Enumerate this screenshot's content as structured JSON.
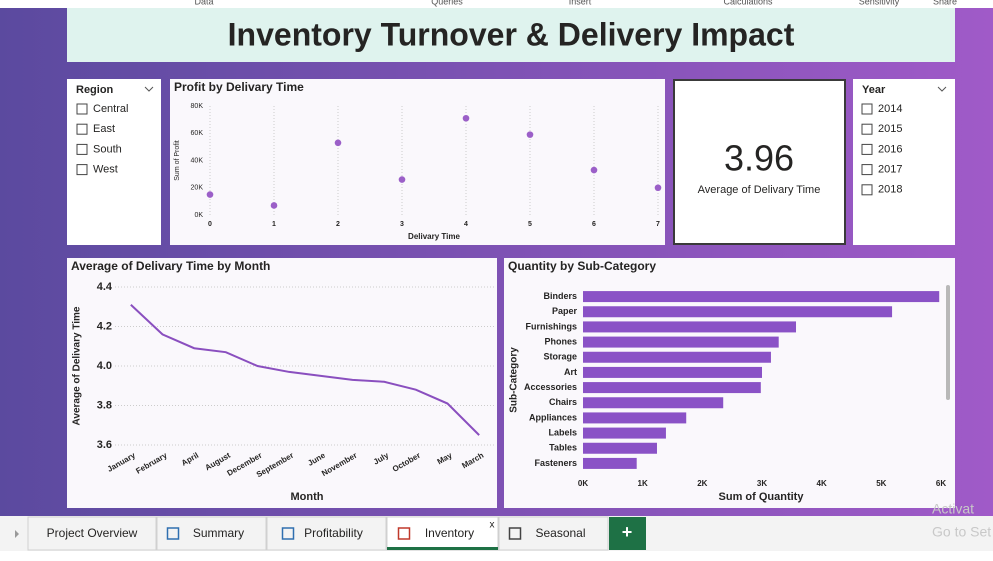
{
  "ribbon": [
    "Data",
    "Queries",
    "Insert",
    "Calculations",
    "Sensitivity",
    "Share"
  ],
  "header": {
    "title": "Inventory Turnover & Delivery Impact"
  },
  "region_slicer": {
    "title": "Region",
    "items": [
      "Central",
      "East",
      "South",
      "West"
    ]
  },
  "year_slicer": {
    "title": "Year",
    "items": [
      "2014",
      "2015",
      "2016",
      "2017",
      "2018"
    ]
  },
  "card": {
    "value": 3.96,
    "label": "Average of Delivary Time"
  },
  "chart_data": [
    {
      "type": "scatter",
      "title": "Profit by Delivary Time",
      "x_label": "Delivary Time",
      "y_label": "Sum of Profit",
      "x": [
        0,
        1,
        2,
        3,
        4,
        5,
        6,
        7
      ],
      "values": [
        15000,
        7000,
        53000,
        26000,
        71000,
        59000,
        33000,
        20000
      ],
      "color": "#9b5fc8",
      "xlim": [
        0,
        7
      ],
      "xticks": [
        0,
        1,
        2,
        3,
        4,
        5,
        6,
        7
      ],
      "ylim": [
        0,
        80000
      ],
      "yticks": [
        {
          "value": 0,
          "label": "0K"
        },
        {
          "value": 20000,
          "label": "20K"
        },
        {
          "value": 40000,
          "label": "40K"
        },
        {
          "value": 60000,
          "label": "60K"
        },
        {
          "value": 80000,
          "label": "80K"
        }
      ],
      "grid": true
    },
    {
      "type": "line",
      "title": "Average of Delivary Time by Month",
      "x_label": "Month",
      "y_label": "Average of Delivary Time",
      "categories": [
        "January",
        "February",
        "April",
        "August",
        "December",
        "September",
        "June",
        "November",
        "July",
        "October",
        "May",
        "March"
      ],
      "values": [
        4.31,
        4.16,
        4.09,
        4.07,
        4.0,
        3.97,
        3.95,
        3.93,
        3.92,
        3.88,
        3.81,
        3.65
      ],
      "color": "#8a4fbf",
      "ylim": [
        3.6,
        4.4
      ],
      "yticks": [
        3.6,
        3.8,
        {
          "value": 4.0,
          "label": "4.0"
        },
        4.2,
        4.4
      ],
      "grid": true
    },
    {
      "type": "barh",
      "title": "Quantity by Sub-Category",
      "x_label": "Sum of Quantity",
      "y_label": "Sub-Category",
      "categories": [
        "Binders",
        "Paper",
        "Furnishings",
        "Phones",
        "Storage",
        "Art",
        "Accessories",
        "Chairs",
        "Appliances",
        "Labels",
        "Tables",
        "Fasteners"
      ],
      "values": [
        5970,
        5180,
        3570,
        3280,
        3150,
        3000,
        2980,
        2350,
        1730,
        1390,
        1240,
        900
      ],
      "color": "#8a52c6",
      "xlim": [
        0,
        6000
      ],
      "xticks": [
        {
          "value": 0,
          "label": "0K"
        },
        {
          "value": 1000,
          "label": "1K"
        },
        {
          "value": 2000,
          "label": "2K"
        },
        {
          "value": 3000,
          "label": "3K"
        },
        {
          "value": 4000,
          "label": "4K"
        },
        {
          "value": 5000,
          "label": "5K"
        },
        {
          "value": 6000,
          "label": "6K"
        }
      ]
    }
  ],
  "tabs": [
    "Project Overview",
    "Summary",
    "Profitability",
    "Inventory",
    "Seasonal"
  ],
  "tab_close": "x",
  "add_tab": "+",
  "watermark": [
    "Activat",
    "Go to Set"
  ]
}
